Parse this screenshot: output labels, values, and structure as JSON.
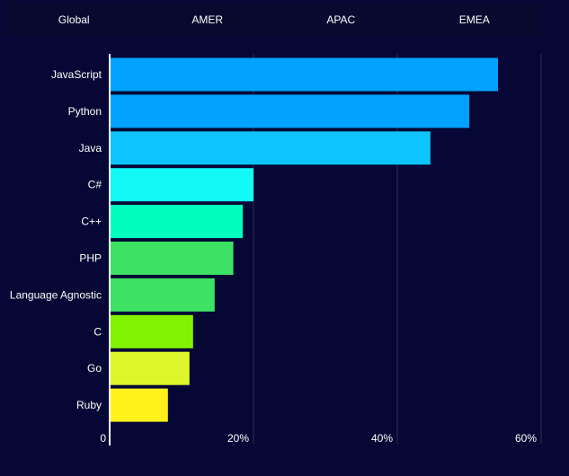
{
  "tabs": [
    {
      "label": "Global"
    },
    {
      "label": "AMER"
    },
    {
      "label": "APAC"
    },
    {
      "label": "EMEA"
    }
  ],
  "chart_data": {
    "type": "bar",
    "orientation": "horizontal",
    "categories": [
      "JavaScript",
      "Python",
      "Java",
      "C#",
      "C++",
      "PHP",
      "Language Agnostic",
      "C",
      "Go",
      "Ruby"
    ],
    "values": [
      54,
      50,
      44.6,
      20,
      18.5,
      17.2,
      14.6,
      11.6,
      11.1,
      8.1
    ],
    "colors": [
      "#00a2fe",
      "#00a2fe",
      "#0ec5fd",
      "#13f9f6",
      "#00ffbf",
      "#3de163",
      "#3de163",
      "#83f200",
      "#ddf72b",
      "#fff21b"
    ],
    "xlim": [
      0,
      60
    ],
    "xticks": [
      0,
      20,
      40,
      60
    ],
    "xtick_labels": [
      "0",
      "20%",
      "40%",
      "60%"
    ],
    "grid": true,
    "title": "",
    "xlabel": "",
    "ylabel": ""
  }
}
